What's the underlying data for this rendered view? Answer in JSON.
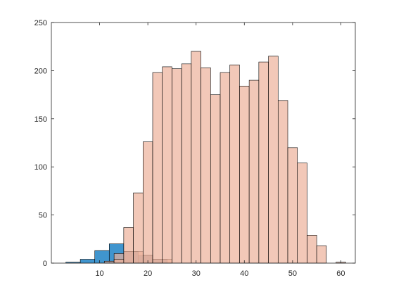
{
  "chart_data": {
    "type": "bar",
    "subtype": "overlaid-histogram",
    "title": "",
    "xlabel": "",
    "ylabel": "",
    "xlim": [
      0,
      63
    ],
    "ylim": [
      0,
      250
    ],
    "xticks": [
      10,
      20,
      30,
      40,
      50,
      60
    ],
    "yticks": [
      0,
      50,
      100,
      150,
      200,
      250
    ],
    "grid": false,
    "legend": "none",
    "series": [
      {
        "color": "#0072BD",
        "alpha": 0.75,
        "bins": [
          {
            "x0": 3,
            "x1": 6,
            "count": 1
          },
          {
            "x0": 6,
            "x1": 9,
            "count": 4
          },
          {
            "x0": 9,
            "x1": 12,
            "count": 13
          },
          {
            "x0": 12,
            "x1": 15,
            "count": 20
          },
          {
            "x0": 15,
            "x1": 18,
            "count": 12
          },
          {
            "x0": 18,
            "x1": 21,
            "count": 8
          },
          {
            "x0": 21,
            "x1": 24,
            "count": 4
          }
        ]
      },
      {
        "color": "#EDB09A",
        "alpha": 0.7,
        "bins": [
          {
            "x0": 11,
            "x1": 13,
            "count": 2
          },
          {
            "x0": 13,
            "x1": 15,
            "count": 10
          },
          {
            "x0": 15,
            "x1": 17,
            "count": 12
          },
          {
            "x0": 17,
            "x1": 19,
            "count": 12
          },
          {
            "x0": 19,
            "x1": 21,
            "count": 8
          },
          {
            "x0": 21,
            "x1": 23,
            "count": 4
          },
          {
            "x0": 23,
            "x1": 25,
            "count": 4
          }
        ]
      },
      {
        "color": "#EDB09A",
        "alpha": 0.7,
        "bins": [
          {
            "x0": 13,
            "x1": 15,
            "count": 4
          },
          {
            "x0": 15,
            "x1": 17,
            "count": 37
          },
          {
            "x0": 17,
            "x1": 19,
            "count": 73
          },
          {
            "x0": 19,
            "x1": 21,
            "count": 126
          },
          {
            "x0": 21,
            "x1": 23,
            "count": 198
          },
          {
            "x0": 23,
            "x1": 25,
            "count": 204
          },
          {
            "x0": 25,
            "x1": 27,
            "count": 202
          },
          {
            "x0": 27,
            "x1": 29,
            "count": 207
          },
          {
            "x0": 29,
            "x1": 31,
            "count": 220
          },
          {
            "x0": 31,
            "x1": 33,
            "count": 203
          },
          {
            "x0": 33,
            "x1": 35,
            "count": 175
          },
          {
            "x0": 35,
            "x1": 37,
            "count": 198
          },
          {
            "x0": 37,
            "x1": 39,
            "count": 206
          },
          {
            "x0": 39,
            "x1": 41,
            "count": 184
          },
          {
            "x0": 41,
            "x1": 43,
            "count": 190
          },
          {
            "x0": 43,
            "x1": 45,
            "count": 209
          },
          {
            "x0": 45,
            "x1": 47,
            "count": 215
          },
          {
            "x0": 47,
            "x1": 49,
            "count": 169
          },
          {
            "x0": 49,
            "x1": 51,
            "count": 120
          },
          {
            "x0": 51,
            "x1": 53,
            "count": 104
          },
          {
            "x0": 53,
            "x1": 55,
            "count": 29
          },
          {
            "x0": 55,
            "x1": 57,
            "count": 18
          },
          {
            "x0": 59,
            "x1": 61,
            "count": 1
          }
        ]
      }
    ]
  }
}
